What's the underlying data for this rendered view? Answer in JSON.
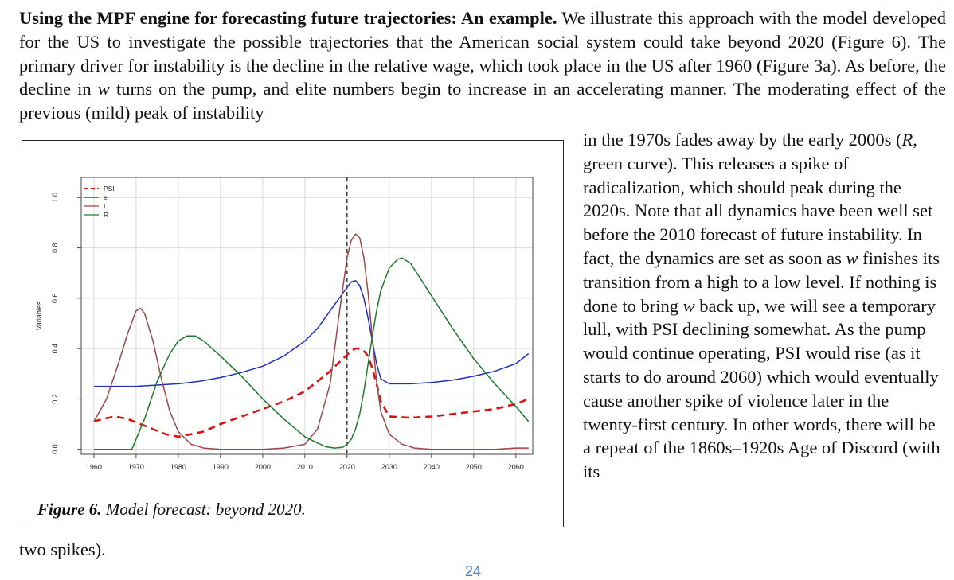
{
  "paragraph": {
    "heading": "Using the MPF engine for forecasting future trajectories: An example.",
    "text_a": " We illustrate this approach with the model developed for the US to investigate the possible trajectories that the American social system could take beyond 2020 (Figure 6). The primary driver for instability is the decline in the relative wage, which took place in the US after 1960 (Figure 3a). As before, the decline in ",
    "w1": "w",
    "text_b": " turns on the pump, and elite numbers begin to increase in an accelerating manner. The moderating effect of the previous (mild) peak of instability",
    "side_a": "in the 1970s fades away by the early 2000s (",
    "r": "R",
    "side_b": ", green curve). This releases a spike of radicalization, which should peak during the 2020s. Note that all dynamics have been well set before the 2010 forecast of future instability. In fact, the dynamics are set as soon as ",
    "w2": "w",
    "side_c": " finishes its transition from a high to a low level. If nothing is done to bring ",
    "w3": "w",
    "side_d": " back up, we will see a temporary lull, with PSI declining somewhat. As the pump would continue operating, PSI would rise (as it starts to do around 2060) which would eventually cause another spike of violence later in the twenty-first century. In other words, there will be a repeat of the 1860s–1920s Age of Discord (with its",
    "tail": "two spikes)."
  },
  "figure": {
    "label": "Figure 6.",
    "caption": " Model forecast: beyond 2020."
  },
  "page_number": "24",
  "chart_data": {
    "type": "line",
    "xlabel": "",
    "ylabel": "Variables",
    "xlim": [
      1957,
      2064
    ],
    "ylim": [
      -0.02,
      1.08
    ],
    "x_ticks": [
      1960,
      1970,
      1980,
      1990,
      2000,
      2010,
      2020,
      2030,
      2040,
      2050,
      2060
    ],
    "y_ticks": [
      0.0,
      0.2,
      0.4,
      0.6,
      0.8,
      1.0
    ],
    "grid": true,
    "legend_position": "top-left",
    "vline_x": 2020,
    "series": [
      {
        "name": "PSI",
        "color": "#dd1111",
        "dash": true,
        "x": [
          1960,
          1962,
          1965,
          1968,
          1971,
          1974,
          1977,
          1980,
          1983,
          1986,
          1990,
          1995,
          2000,
          2005,
          2010,
          2013,
          2016,
          2019,
          2021,
          2022,
          2023,
          2024,
          2025,
          2026,
          2027,
          2028,
          2030,
          2035,
          2040,
          2045,
          2050,
          2055,
          2060,
          2063
        ],
        "y": [
          0.11,
          0.12,
          0.13,
          0.12,
          0.1,
          0.08,
          0.06,
          0.05,
          0.06,
          0.07,
          0.1,
          0.13,
          0.16,
          0.19,
          0.23,
          0.27,
          0.31,
          0.36,
          0.39,
          0.4,
          0.4,
          0.39,
          0.37,
          0.32,
          0.26,
          0.19,
          0.13,
          0.125,
          0.13,
          0.14,
          0.15,
          0.16,
          0.18,
          0.2
        ]
      },
      {
        "name": "e",
        "color": "#1f2fbf",
        "dash": false,
        "x": [
          1960,
          1965,
          1970,
          1975,
          1980,
          1985,
          1990,
          1995,
          2000,
          2005,
          2010,
          2013,
          2016,
          2019,
          2021,
          2022,
          2023,
          2024,
          2025,
          2026,
          2027,
          2028,
          2030,
          2035,
          2040,
          2045,
          2050,
          2055,
          2060,
          2063
        ],
        "y": [
          0.25,
          0.25,
          0.25,
          0.255,
          0.26,
          0.27,
          0.285,
          0.305,
          0.33,
          0.37,
          0.43,
          0.48,
          0.55,
          0.62,
          0.665,
          0.67,
          0.65,
          0.6,
          0.52,
          0.43,
          0.34,
          0.28,
          0.26,
          0.26,
          0.265,
          0.275,
          0.29,
          0.31,
          0.34,
          0.38
        ]
      },
      {
        "name": "I",
        "color": "#9c4848",
        "dash": false,
        "x": [
          1960,
          1963,
          1966,
          1968,
          1970,
          1971,
          1972,
          1974,
          1976,
          1978,
          1980,
          1983,
          1986,
          1990,
          1995,
          2000,
          2005,
          2010,
          2013,
          2016,
          2018,
          2020,
          2021,
          2022,
          2023,
          2024,
          2025,
          2026,
          2027,
          2028,
          2030,
          2033,
          2036,
          2040,
          2045,
          2050,
          2055,
          2060,
          2063
        ],
        "y": [
          0.11,
          0.2,
          0.35,
          0.46,
          0.55,
          0.56,
          0.54,
          0.43,
          0.28,
          0.15,
          0.07,
          0.02,
          0.005,
          0.0,
          0.0,
          0.0,
          0.005,
          0.02,
          0.08,
          0.26,
          0.52,
          0.76,
          0.83,
          0.855,
          0.84,
          0.76,
          0.62,
          0.44,
          0.27,
          0.15,
          0.06,
          0.02,
          0.005,
          0.0,
          0.0,
          0.0,
          0.0,
          0.005,
          0.005
        ]
      },
      {
        "name": "R",
        "color": "#1e7a2a",
        "dash": false,
        "x": [
          1960,
          1965,
          1969,
          1972,
          1975,
          1978,
          1980,
          1982,
          1984,
          1986,
          1990,
          1995,
          2000,
          2005,
          2010,
          2013,
          2015,
          2017,
          2019,
          2020,
          2021,
          2022,
          2023,
          2024,
          2025,
          2026,
          2027,
          2028,
          2030,
          2032,
          2033,
          2035,
          2040,
          2045,
          2050,
          2055,
          2060,
          2063
        ],
        "y": [
          0.0,
          0.0,
          0.0,
          0.12,
          0.27,
          0.38,
          0.43,
          0.45,
          0.45,
          0.43,
          0.37,
          0.29,
          0.2,
          0.12,
          0.05,
          0.025,
          0.01,
          0.005,
          0.008,
          0.02,
          0.04,
          0.08,
          0.14,
          0.23,
          0.34,
          0.45,
          0.55,
          0.63,
          0.72,
          0.755,
          0.76,
          0.74,
          0.61,
          0.48,
          0.36,
          0.26,
          0.17,
          0.11
        ]
      }
    ]
  }
}
